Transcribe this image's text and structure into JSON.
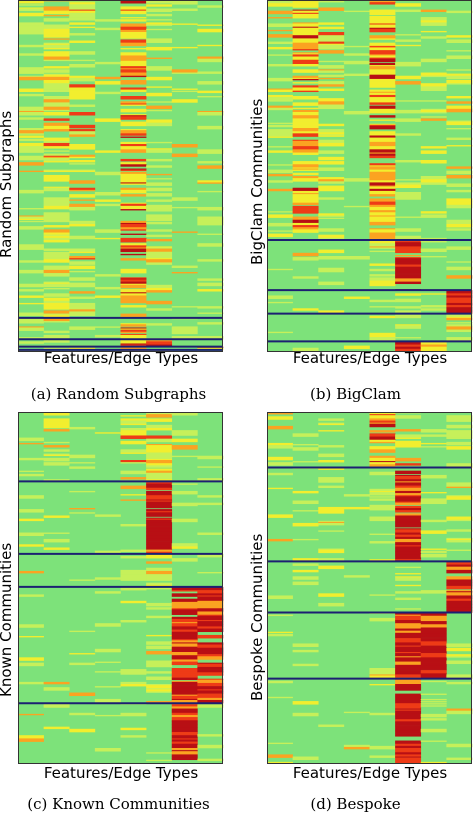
{
  "colors": {
    "base": "#7de27a",
    "low": "#c6f05a",
    "mid": "#f2ee2e",
    "high": "#fba321",
    "top": "#ee3b16",
    "max": "#b80f14",
    "separator": "#1c1f72"
  },
  "chart_data": [
    {
      "type": "heatmap",
      "ylabel": "Random Subgraphs",
      "xlabel": "Features/Edge Types",
      "caption": "(a) Random Subgraphs",
      "columns": 8,
      "rows": 330,
      "boundaries": [
        298,
        318,
        325,
        328
      ],
      "column_intensity": [
        [
          0.35,
          0.35,
          0.35,
          0.35,
          0.35
        ],
        [
          0.7,
          0.7,
          0.7,
          0.7,
          0.7
        ],
        [
          0.45,
          0.45,
          0.45,
          0.45,
          0.45
        ],
        [
          0.05,
          0.05,
          0.05,
          0.05,
          0.05
        ],
        [
          0.75,
          0.75,
          0.75,
          0.75,
          0.75
        ],
        [
          0.3,
          0.3,
          0.95,
          0.3,
          0.3
        ],
        [
          0.1,
          0.1,
          0.1,
          0.1,
          0.1
        ],
        [
          0.2,
          0.2,
          0.2,
          0.9,
          0.2
        ]
      ]
    },
    {
      "type": "heatmap",
      "ylabel": "BigClam Communities",
      "xlabel": "Features/Edge Types",
      "caption": "(b) BigClam",
      "columns": 8,
      "rows": 330,
      "boundaries": [
        225,
        272,
        294,
        320
      ],
      "column_intensity": [
        [
          0.35,
          0.05,
          0.1,
          0.05,
          0.05
        ],
        [
          0.75,
          0.05,
          0.1,
          0.05,
          0.1
        ],
        [
          0.45,
          0.35,
          0.2,
          0.1,
          0.05
        ],
        [
          0.05,
          0.05,
          0.05,
          0.05,
          0.05
        ],
        [
          0.85,
          0.5,
          0.3,
          0.2,
          0.1
        ],
        [
          0.3,
          0.95,
          0.4,
          0.2,
          0.95
        ],
        [
          0.2,
          0.1,
          0.1,
          0.15,
          0.85
        ],
        [
          0.3,
          0.2,
          0.98,
          0.4,
          0.2
        ]
      ]
    },
    {
      "type": "heatmap",
      "ylabel": "Known Communities",
      "xlabel": "Features/Edge Types",
      "caption": "(c) Known Communities",
      "columns": 8,
      "rows": 330,
      "boundaries": [
        65,
        133,
        164,
        273
      ],
      "column_intensity": [
        [
          0.1,
          0.05,
          0.05,
          0.05,
          0.05
        ],
        [
          0.3,
          0.1,
          0.05,
          0.05,
          0.05
        ],
        [
          0.1,
          0.05,
          0.05,
          0.05,
          0.05
        ],
        [
          0.05,
          0.05,
          0.05,
          0.05,
          0.05
        ],
        [
          0.55,
          0.1,
          0.1,
          0.15,
          0.1
        ],
        [
          0.6,
          0.98,
          0.6,
          0.3,
          0.15
        ],
        [
          0.2,
          0.1,
          0.1,
          0.98,
          0.99
        ],
        [
          0.1,
          0.05,
          0.1,
          0.97,
          0.2
        ]
      ]
    },
    {
      "type": "heatmap",
      "ylabel": "Bespoke Communities",
      "xlabel": "Features/Edge Types",
      "caption": "(d) Bespoke",
      "columns": 8,
      "rows": 330,
      "boundaries": [
        52,
        140,
        188,
        250
      ],
      "column_intensity": [
        [
          0.3,
          0.1,
          0.05,
          0.05,
          0.05
        ],
        [
          0.2,
          0.15,
          0.1,
          0.05,
          0.05
        ],
        [
          0.1,
          0.3,
          0.05,
          0.05,
          0.05
        ],
        [
          0.05,
          0.05,
          0.05,
          0.05,
          0.05
        ],
        [
          0.8,
          0.2,
          0.1,
          0.1,
          0.1
        ],
        [
          0.5,
          0.98,
          0.3,
          0.98,
          0.99
        ],
        [
          0.2,
          0.1,
          0.1,
          0.97,
          0.2
        ],
        [
          0.4,
          0.3,
          0.98,
          0.2,
          0.15
        ]
      ]
    }
  ]
}
